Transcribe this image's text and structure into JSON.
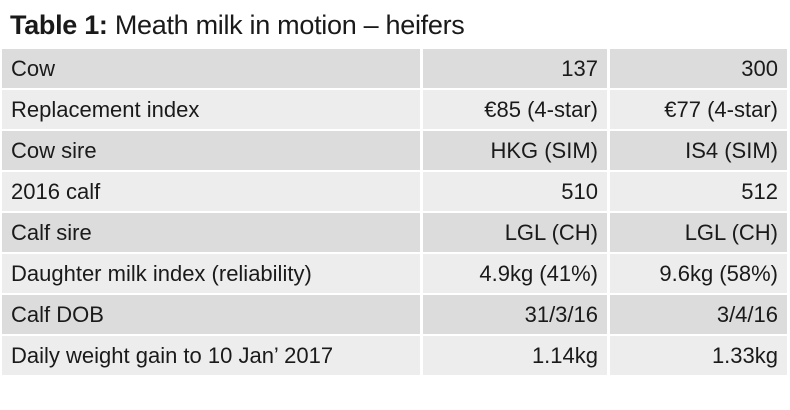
{
  "title": {
    "label": "Table 1:",
    "text": " Meath milk in motion – heifers"
  },
  "table": {
    "rows": [
      {
        "label": "Cow",
        "values": [
          "137",
          "300"
        ]
      },
      {
        "label": "Replacement index",
        "values": [
          "€85 (4-star)",
          "€77 (4-star)"
        ]
      },
      {
        "label": "Cow sire",
        "values": [
          "HKG (SIM)",
          "IS4 (SIM)"
        ]
      },
      {
        "label": "2016 calf",
        "values": [
          "510",
          "512"
        ]
      },
      {
        "label": "Calf sire",
        "values": [
          "LGL (CH)",
          "LGL (CH)"
        ]
      },
      {
        "label": "Daughter milk index (reliability)",
        "values": [
          "4.9kg (41%)",
          "9.6kg (58%)"
        ]
      },
      {
        "label": "Calf DOB",
        "values": [
          "31/3/16",
          "3/4/16"
        ]
      },
      {
        "label": "Daily weight gain to 10 Jan’ 2017",
        "values": [
          "1.14kg",
          "1.33kg"
        ]
      }
    ]
  },
  "colors": {
    "row_dark": "#dcdcdc",
    "row_light": "#ededed"
  }
}
